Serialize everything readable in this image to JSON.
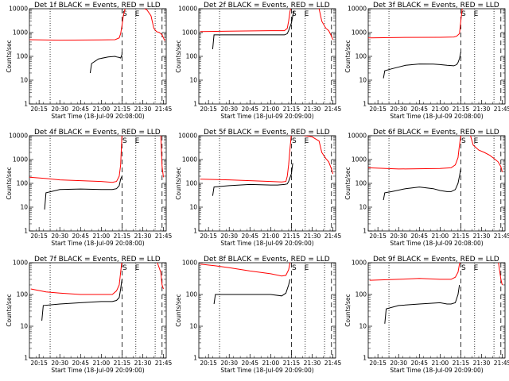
{
  "chart_data": [
    {
      "type": "line",
      "title": "Det 1f BLACK = Events, RED = LLD",
      "xlabel": "Start Time (18-Jul-09 20:08:00)",
      "ylabel": "Counts/sec",
      "xticks": [
        "20:15",
        "20:30",
        "20:45",
        "21:00",
        "21:15",
        "21:30",
        "21:45"
      ],
      "yticks": [
        "1",
        "10",
        "100",
        "1000",
        "10000"
      ],
      "ylim": [
        1,
        10000
      ],
      "yscale": "log",
      "markers": [
        "S",
        "E"
      ],
      "series": [
        {
          "color": "#000000",
          "x": [
            "20:52",
            "20:53",
            "20:58",
            "21:05",
            "21:10",
            "21:11",
            "21:13",
            "21:14",
            "21:15",
            "21:15"
          ],
          "values": [
            20,
            50,
            78,
            95,
            100,
            95,
            90,
            85,
            120,
            150
          ]
        },
        {
          "color": "#ff0000",
          "x": [
            "20:08",
            "20:30",
            "21:00",
            "21:10",
            "21:13",
            "21:14",
            "21:15",
            "21:16",
            "21:17",
            "21:18",
            "21:20",
            "21:25",
            "21:30",
            "21:33",
            "21:36",
            "21:38",
            "21:40",
            "21:42",
            "21:43",
            "21:44",
            "21:45",
            "21:46"
          ],
          "values": [
            500,
            480,
            490,
            500,
            600,
            900,
            2000,
            5000,
            9000,
            12000,
            12000,
            12000,
            11000,
            9000,
            5000,
            1500,
            1100,
            1000,
            900,
            800,
            600,
            450
          ]
        }
      ]
    },
    {
      "type": "line",
      "title": "Det 2f BLACK = Events, RED = LLD",
      "xlabel": "Start Time (18-Jul-09 20:09:00)",
      "ylabel": "Counts/sec",
      "xticks": [
        "20:15",
        "20:30",
        "20:45",
        "21:00",
        "21:15",
        "21:30",
        "21:45"
      ],
      "yticks": [
        "1",
        "10",
        "100",
        "1000",
        "10000"
      ],
      "ylim": [
        1,
        10000
      ],
      "yscale": "log",
      "markers": [
        "S",
        "E"
      ],
      "series": [
        {
          "color": "#000000",
          "x": [
            "20:18",
            "20:19",
            "20:30",
            "20:45",
            "21:00",
            "21:05",
            "21:10",
            "21:12",
            "21:13",
            "21:15",
            "21:16",
            "21:17"
          ],
          "values": [
            200,
            800,
            800,
            800,
            800,
            800,
            800,
            900,
            1200,
            2500,
            5000,
            8000
          ]
        },
        {
          "color": "#ff0000",
          "x": [
            "20:09",
            "20:30",
            "21:00",
            "21:10",
            "21:12",
            "21:13",
            "21:14",
            "21:15",
            "21:20",
            "21:30",
            "21:35",
            "21:37",
            "21:40",
            "21:42",
            "21:44",
            "21:45"
          ],
          "values": [
            1100,
            1150,
            1200,
            1200,
            1500,
            3000,
            8000,
            12000,
            12000,
            11000,
            10000,
            3000,
            1500,
            1200,
            700,
            500
          ]
        }
      ]
    },
    {
      "type": "line",
      "title": "Det 3f BLACK = Events, RED = LLD",
      "xlabel": "Start Time (18-Jul-09 20:08:00)",
      "ylabel": "Counts/sec",
      "xticks": [
        "20:15",
        "20:30",
        "20:45",
        "21:00",
        "21:15",
        "21:30",
        "21:45"
      ],
      "yticks": [
        "1",
        "10",
        "100",
        "1000",
        "10000"
      ],
      "ylim": [
        1,
        10000
      ],
      "yscale": "log",
      "markers": [
        "S",
        "E"
      ],
      "series": [
        {
          "color": "#000000",
          "x": [
            "20:19",
            "20:20",
            "20:25",
            "20:35",
            "20:45",
            "20:55",
            "21:00",
            "21:05",
            "21:10",
            "21:12",
            "21:13",
            "21:14",
            "21:15"
          ],
          "values": [
            12,
            25,
            30,
            42,
            48,
            47,
            45,
            42,
            40,
            45,
            55,
            80,
            150
          ]
        },
        {
          "color": "#ff0000",
          "x": [
            "20:08",
            "20:30",
            "21:00",
            "21:10",
            "21:12",
            "21:14",
            "21:15",
            "21:16",
            "21:18",
            "21:30",
            "21:40",
            "21:45"
          ],
          "values": [
            600,
            620,
            630,
            650,
            700,
            900,
            3000,
            10000,
            12000,
            12000,
            12000,
            12000
          ]
        }
      ]
    },
    {
      "type": "line",
      "title": "Det 4f BLACK = Events, RED = LLD",
      "xlabel": "Start Time (18-Jul-09 20:08:00)",
      "ylabel": "Counts/sec",
      "xticks": [
        "20:15",
        "20:30",
        "20:45",
        "21:00",
        "21:15",
        "21:30",
        "21:45"
      ],
      "yticks": [
        "1",
        "10",
        "100",
        "1000",
        "10000"
      ],
      "ylim": [
        1,
        10000
      ],
      "yscale": "log",
      "markers": [
        "S",
        "E"
      ],
      "series": [
        {
          "color": "#000000",
          "x": [
            "20:19",
            "20:20",
            "20:30",
            "20:45",
            "21:00",
            "21:08",
            "21:11",
            "21:13",
            "21:14",
            "21:15"
          ],
          "values": [
            8,
            40,
            55,
            58,
            55,
            55,
            60,
            80,
            150,
            200
          ]
        },
        {
          "color": "#ff0000",
          "x": [
            "20:08",
            "20:20",
            "20:30",
            "20:45",
            "21:00",
            "21:08",
            "21:11",
            "21:13",
            "21:14",
            "21:15",
            "21:20",
            "21:40",
            "21:43",
            "21:44",
            "21:45"
          ],
          "values": [
            180,
            160,
            140,
            130,
            120,
            110,
            120,
            200,
            600,
            12000,
            12000,
            12000,
            12000,
            500,
            180
          ]
        }
      ]
    },
    {
      "type": "line",
      "title": "Det 5f BLACK = Events, RED = LLD",
      "xlabel": "Start Time (18-Jul-09 20:09:00)",
      "ylabel": "Counts/sec",
      "xticks": [
        "20:15",
        "20:30",
        "20:45",
        "21:00",
        "21:15",
        "21:30",
        "21:45"
      ],
      "yticks": [
        "1",
        "10",
        "100",
        "1000",
        "10000"
      ],
      "ylim": [
        1,
        10000
      ],
      "yscale": "log",
      "markers": [
        "S",
        "E"
      ],
      "series": [
        {
          "color": "#000000",
          "x": [
            "20:18",
            "20:19",
            "20:30",
            "20:45",
            "21:00",
            "21:05",
            "21:10",
            "21:12",
            "21:13",
            "21:15",
            "21:16"
          ],
          "values": [
            30,
            70,
            80,
            90,
            85,
            85,
            90,
            95,
            120,
            250,
            700
          ]
        },
        {
          "color": "#ff0000",
          "x": [
            "20:09",
            "20:30",
            "20:45",
            "21:00",
            "21:08",
            "21:11",
            "21:12",
            "21:13",
            "21:14",
            "21:15",
            "21:17",
            "21:20",
            "21:25",
            "21:30",
            "21:35",
            "21:37",
            "21:40",
            "21:42",
            "21:44",
            "21:45"
          ],
          "values": [
            150,
            140,
            130,
            120,
            115,
            120,
            200,
            600,
            3000,
            12000,
            12000,
            11000,
            10000,
            9000,
            6000,
            2000,
            1100,
            800,
            400,
            250
          ]
        }
      ]
    },
    {
      "type": "line",
      "title": "Det 6f BLACK = Events, RED = LLD",
      "xlabel": "Start Time (18-Jul-09 20:08:00)",
      "ylabel": "Counts/sec",
      "xticks": [
        "20:15",
        "20:30",
        "20:45",
        "21:00",
        "21:15",
        "21:30",
        "21:45"
      ],
      "yticks": [
        "1",
        "10",
        "100",
        "1000",
        "10000"
      ],
      "ylim": [
        1,
        10000
      ],
      "yscale": "log",
      "markers": [
        "S",
        "E"
      ],
      "series": [
        {
          "color": "#000000",
          "x": [
            "20:19",
            "20:20",
            "20:25",
            "20:35",
            "20:45",
            "20:55",
            "21:00",
            "21:05",
            "21:08",
            "21:11",
            "21:13",
            "21:14",
            "21:15"
          ],
          "values": [
            20,
            40,
            45,
            60,
            70,
            60,
            50,
            45,
            45,
            55,
            100,
            200,
            400
          ]
        },
        {
          "color": "#ff0000",
          "x": [
            "20:08",
            "20:30",
            "21:00",
            "21:08",
            "21:11",
            "21:13",
            "21:14",
            "21:15",
            "21:17",
            "21:20",
            "21:22",
            "21:24",
            "21:28",
            "21:32",
            "21:36",
            "21:40",
            "21:42",
            "21:44",
            "21:45"
          ],
          "values": [
            450,
            400,
            420,
            450,
            600,
            1200,
            4000,
            10000,
            12000,
            11000,
            10000,
            4000,
            2500,
            2000,
            1500,
            1000,
            800,
            500,
            300
          ]
        }
      ]
    },
    {
      "type": "line",
      "title": "Det 7f BLACK = Events, RED = LLD",
      "xlabel": "Start Time (18-Jul-09 20:09:00)",
      "ylabel": "Counts/sec",
      "xticks": [
        "20:15",
        "20:30",
        "20:45",
        "21:00",
        "21:15",
        "21:30",
        "21:45"
      ],
      "yticks": [
        "1",
        "10",
        "100",
        "1000"
      ],
      "ylim": [
        1,
        1000
      ],
      "yscale": "log",
      "markers": [
        "S",
        "E"
      ],
      "series": [
        {
          "color": "#000000",
          "x": [
            "20:17",
            "20:18",
            "20:30",
            "20:45",
            "21:00",
            "21:08",
            "21:11",
            "21:13",
            "21:14",
            "21:15"
          ],
          "values": [
            15,
            45,
            50,
            55,
            60,
            60,
            65,
            80,
            150,
            300
          ]
        },
        {
          "color": "#ff0000",
          "x": [
            "20:09",
            "20:20",
            "20:30",
            "20:45",
            "21:00",
            "21:08",
            "21:11",
            "21:13",
            "21:14",
            "21:15",
            "21:17",
            "21:30",
            "21:40",
            "21:43",
            "21:44",
            "21:45"
          ],
          "values": [
            150,
            120,
            110,
            100,
            100,
            100,
            130,
            200,
            500,
            1200,
            1200,
            1200,
            1200,
            500,
            200,
            150
          ]
        }
      ]
    },
    {
      "type": "line",
      "title": "Det 8f BLACK = Events, RED = LLD",
      "xlabel": "Start Time (18-Jul-09 20:09:00)",
      "ylabel": "Counts/sec",
      "xticks": [
        "20:15",
        "20:30",
        "20:45",
        "21:00",
        "21:15",
        "21:30",
        "21:45"
      ],
      "yticks": [
        "1",
        "10",
        "100",
        "1000"
      ],
      "ylim": [
        1,
        1000
      ],
      "yscale": "log",
      "markers": [
        "S",
        "E"
      ],
      "series": [
        {
          "color": "#000000",
          "x": [
            "20:19",
            "20:20",
            "20:30",
            "20:45",
            "21:00",
            "21:08",
            "21:11",
            "21:13",
            "21:14"
          ],
          "values": [
            50,
            100,
            100,
            100,
            100,
            90,
            110,
            200,
            300
          ]
        },
        {
          "color": "#ff0000",
          "x": [
            "20:09",
            "20:20",
            "20:30",
            "20:45",
            "21:00",
            "21:08",
            "21:11",
            "21:13",
            "21:14",
            "21:15",
            "21:17",
            "21:30",
            "21:40",
            "21:45"
          ],
          "values": [
            900,
            800,
            700,
            550,
            450,
            380,
            400,
            600,
            1000,
            1200,
            1200,
            1200,
            1200,
            1200
          ]
        }
      ]
    },
    {
      "type": "line",
      "title": "Det 9f BLACK = Events, RED = LLD",
      "xlabel": "Start Time (18-Jul-09 20:09:00)",
      "ylabel": "Counts/sec",
      "xticks": [
        "20:15",
        "20:30",
        "20:45",
        "21:00",
        "21:15",
        "21:30",
        "21:45"
      ],
      "yticks": [
        "1",
        "10",
        "100",
        "1000"
      ],
      "ylim": [
        1,
        1000
      ],
      "yscale": "log",
      "markers": [
        "S",
        "E"
      ],
      "series": [
        {
          "color": "#000000",
          "x": [
            "20:20",
            "20:21",
            "20:30",
            "20:45",
            "21:00",
            "21:05",
            "21:08",
            "21:11",
            "21:13",
            "21:14"
          ],
          "values": [
            12,
            35,
            45,
            50,
            55,
            50,
            50,
            55,
            100,
            200
          ]
        },
        {
          "color": "#ff0000",
          "x": [
            "20:09",
            "20:30",
            "20:45",
            "21:00",
            "21:08",
            "21:11",
            "21:13",
            "21:14",
            "21:15",
            "21:17",
            "21:30",
            "21:40",
            "21:42",
            "21:44",
            "21:45"
          ],
          "values": [
            280,
            300,
            320,
            300,
            300,
            350,
            500,
            900,
            1200,
            1200,
            1200,
            1200,
            1200,
            300,
            200
          ]
        }
      ]
    }
  ]
}
